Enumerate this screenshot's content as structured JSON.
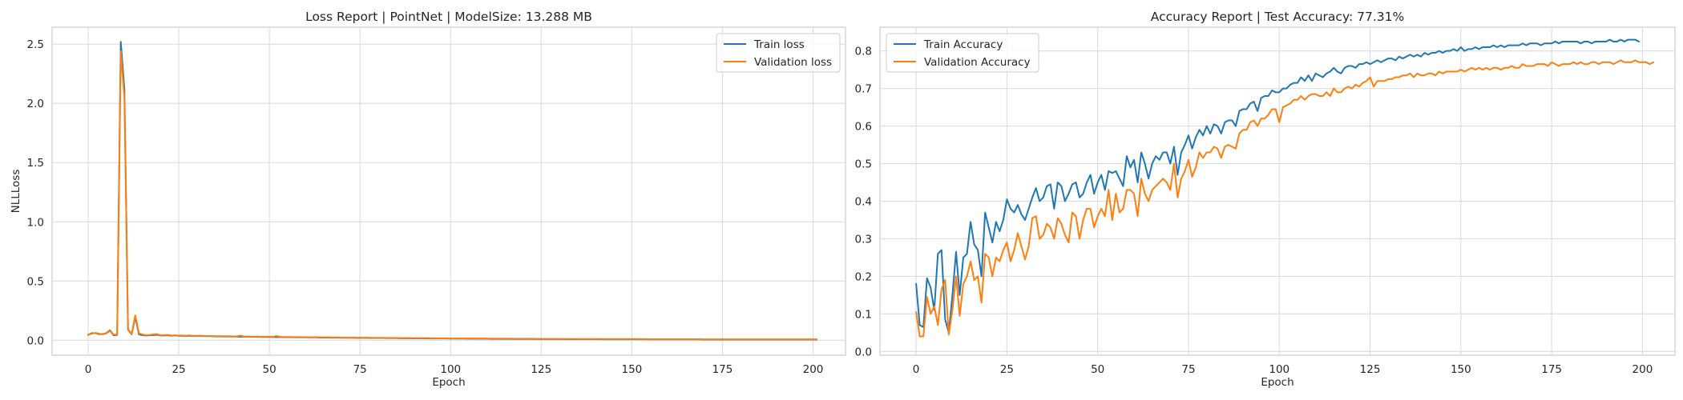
{
  "chart_data": [
    {
      "type": "line",
      "title": "Loss Report | PointNet | ModelSize: 13.288 MB",
      "xlabel": "Epoch",
      "ylabel": "NLLLoss",
      "xlim": [
        -9.95,
        208.95
      ],
      "ylim": [
        -0.126,
        2.643
      ],
      "xticks": [
        0,
        25,
        50,
        75,
        100,
        125,
        150,
        175,
        200
      ],
      "yticks": [
        0.0,
        0.5,
        1.0,
        1.5,
        2.0,
        2.5
      ],
      "ytick_labels": [
        "0.0",
        "0.5",
        "1.0",
        "1.5",
        "2.0",
        "2.5"
      ],
      "grid": true,
      "legend_position": "upper right",
      "series": [
        {
          "name": "Train loss",
          "color": "#1f77b4",
          "x_start": 0,
          "values": [
            0.045,
            0.06,
            0.06,
            0.052,
            0.052,
            0.06,
            0.085,
            0.042,
            0.045,
            2.52,
            2.12,
            0.09,
            0.05,
            0.195,
            0.05,
            0.042,
            0.04,
            0.042,
            0.044,
            0.046,
            0.04,
            0.04,
            0.042,
            0.038,
            0.04,
            0.038,
            0.038,
            0.036,
            0.038,
            0.036,
            0.036,
            0.036,
            0.034,
            0.034,
            0.034,
            0.033,
            0.033,
            0.032,
            0.032,
            0.032,
            0.031,
            0.031,
            0.03,
            0.03,
            0.03,
            0.029,
            0.029,
            0.029,
            0.028,
            0.028,
            0.028,
            0.027,
            0.027,
            0.027,
            0.026,
            0.026,
            0.026,
            0.025,
            0.025,
            0.025,
            0.024,
            0.024,
            0.024,
            0.024,
            0.023,
            0.023,
            0.023,
            0.022,
            0.022,
            0.022,
            0.021,
            0.021,
            0.021,
            0.021,
            0.02,
            0.02,
            0.02,
            0.02,
            0.019,
            0.019,
            0.019,
            0.019,
            0.018,
            0.018,
            0.018,
            0.018,
            0.017,
            0.017,
            0.017,
            0.017,
            0.016,
            0.016,
            0.016,
            0.016,
            0.016,
            0.015,
            0.015,
            0.015,
            0.015,
            0.015,
            0.014,
            0.014,
            0.014,
            0.014,
            0.014,
            0.013,
            0.013,
            0.013,
            0.013,
            0.013,
            0.013,
            0.012,
            0.012,
            0.012,
            0.012,
            0.012,
            0.012,
            0.011,
            0.011,
            0.011,
            0.011,
            0.011,
            0.011,
            0.011,
            0.01,
            0.01,
            0.01,
            0.01,
            0.01,
            0.01,
            0.01,
            0.01,
            0.009,
            0.009,
            0.009,
            0.009,
            0.009,
            0.009,
            0.009,
            0.009,
            0.009,
            0.009,
            0.008,
            0.008,
            0.008,
            0.008,
            0.008,
            0.008,
            0.008,
            0.008,
            0.008,
            0.008,
            0.008,
            0.008,
            0.007,
            0.007,
            0.007,
            0.007,
            0.007,
            0.007,
            0.007,
            0.007,
            0.007,
            0.007,
            0.007,
            0.007,
            0.007,
            0.007,
            0.007,
            0.007,
            0.006,
            0.006,
            0.006,
            0.006,
            0.006,
            0.006,
            0.006,
            0.006,
            0.006,
            0.006,
            0.006,
            0.006,
            0.006,
            0.006,
            0.006,
            0.006,
            0.006,
            0.006,
            0.006,
            0.006,
            0.006,
            0.006,
            0.006,
            0.006,
            0.006,
            0.006,
            0.006,
            0.006,
            0.006,
            0.006,
            0.006,
            0.006
          ]
        },
        {
          "name": "Validation loss",
          "color": "#ff7f0e",
          "x_start": 0,
          "values": [
            0.048,
            0.055,
            0.062,
            0.056,
            0.05,
            0.058,
            0.08,
            0.048,
            0.05,
            2.44,
            2.05,
            0.095,
            0.052,
            0.21,
            0.06,
            0.048,
            0.044,
            0.045,
            0.05,
            0.052,
            0.042,
            0.043,
            0.046,
            0.04,
            0.042,
            0.04,
            0.04,
            0.038,
            0.041,
            0.038,
            0.038,
            0.039,
            0.036,
            0.036,
            0.036,
            0.035,
            0.035,
            0.034,
            0.034,
            0.034,
            0.033,
            0.033,
            0.04,
            0.032,
            0.032,
            0.031,
            0.031,
            0.031,
            0.03,
            0.03,
            0.03,
            0.029,
            0.036,
            0.029,
            0.028,
            0.028,
            0.028,
            0.027,
            0.027,
            0.027,
            0.026,
            0.026,
            0.026,
            0.026,
            0.025,
            0.025,
            0.025,
            0.024,
            0.024,
            0.024,
            0.023,
            0.023,
            0.023,
            0.023,
            0.022,
            0.022,
            0.022,
            0.022,
            0.021,
            0.021,
            0.021,
            0.021,
            0.02,
            0.02,
            0.02,
            0.02,
            0.019,
            0.019,
            0.019,
            0.019,
            0.018,
            0.018,
            0.018,
            0.018,
            0.018,
            0.017,
            0.017,
            0.017,
            0.017,
            0.017,
            0.016,
            0.016,
            0.016,
            0.016,
            0.016,
            0.015,
            0.015,
            0.015,
            0.015,
            0.015,
            0.015,
            0.014,
            0.014,
            0.014,
            0.014,
            0.014,
            0.014,
            0.013,
            0.013,
            0.013,
            0.013,
            0.013,
            0.013,
            0.013,
            0.012,
            0.012,
            0.012,
            0.012,
            0.012,
            0.012,
            0.012,
            0.012,
            0.011,
            0.011,
            0.011,
            0.011,
            0.011,
            0.011,
            0.011,
            0.011,
            0.011,
            0.011,
            0.01,
            0.01,
            0.01,
            0.01,
            0.01,
            0.01,
            0.01,
            0.01,
            0.01,
            0.01,
            0.01,
            0.01,
            0.009,
            0.009,
            0.009,
            0.009,
            0.009,
            0.009,
            0.009,
            0.009,
            0.009,
            0.009,
            0.009,
            0.009,
            0.009,
            0.009,
            0.009,
            0.009,
            0.008,
            0.008,
            0.008,
            0.008,
            0.008,
            0.008,
            0.008,
            0.008,
            0.008,
            0.008,
            0.008,
            0.008,
            0.008,
            0.008,
            0.008,
            0.008,
            0.008,
            0.008,
            0.008,
            0.008,
            0.008,
            0.008,
            0.008,
            0.008,
            0.008,
            0.008,
            0.008,
            0.008,
            0.008,
            0.008,
            0.008,
            0.008
          ]
        }
      ]
    },
    {
      "type": "line",
      "title": "Accuracy Report | Test Accuracy: 77.31%",
      "xlabel": "Epoch",
      "ylabel": "",
      "xlim": [
        -9.95,
        208.95
      ],
      "ylim": [
        -0.01,
        0.8632
      ],
      "xticks": [
        0,
        25,
        50,
        75,
        100,
        125,
        150,
        175,
        200
      ],
      "yticks": [
        0.0,
        0.1,
        0.2,
        0.3,
        0.4,
        0.5,
        0.6,
        0.7,
        0.8
      ],
      "ytick_labels": [
        "0.0",
        "0.1",
        "0.2",
        "0.3",
        "0.4",
        "0.5",
        "0.6",
        "0.7",
        "0.8"
      ],
      "grid": true,
      "legend_position": "upper left",
      "series": [
        {
          "name": "Train Accuracy",
          "color": "#1f77b4",
          "x_start": 0,
          "values": [
            0.18,
            0.07,
            0.065,
            0.195,
            0.17,
            0.11,
            0.26,
            0.27,
            0.085,
            0.05,
            0.15,
            0.265,
            0.15,
            0.25,
            0.26,
            0.345,
            0.285,
            0.27,
            0.2,
            0.37,
            0.33,
            0.29,
            0.345,
            0.32,
            0.35,
            0.405,
            0.38,
            0.37,
            0.39,
            0.365,
            0.35,
            0.38,
            0.41,
            0.435,
            0.4,
            0.41,
            0.44,
            0.445,
            0.38,
            0.45,
            0.44,
            0.4,
            0.42,
            0.445,
            0.45,
            0.41,
            0.42,
            0.45,
            0.47,
            0.42,
            0.45,
            0.47,
            0.43,
            0.48,
            0.475,
            0.48,
            0.46,
            0.44,
            0.52,
            0.49,
            0.51,
            0.45,
            0.53,
            0.5,
            0.46,
            0.5,
            0.52,
            0.51,
            0.53,
            0.53,
            0.5,
            0.545,
            0.47,
            0.53,
            0.55,
            0.575,
            0.54,
            0.57,
            0.59,
            0.575,
            0.6,
            0.58,
            0.605,
            0.6,
            0.58,
            0.61,
            0.615,
            0.615,
            0.6,
            0.64,
            0.645,
            0.645,
            0.66,
            0.665,
            0.64,
            0.675,
            0.68,
            0.68,
            0.695,
            0.69,
            0.69,
            0.7,
            0.7,
            0.71,
            0.715,
            0.715,
            0.73,
            0.72,
            0.735,
            0.72,
            0.74,
            0.735,
            0.73,
            0.74,
            0.745,
            0.755,
            0.745,
            0.74,
            0.755,
            0.76,
            0.76,
            0.755,
            0.765,
            0.765,
            0.77,
            0.765,
            0.77,
            0.775,
            0.77,
            0.775,
            0.78,
            0.78,
            0.775,
            0.785,
            0.78,
            0.785,
            0.79,
            0.785,
            0.79,
            0.785,
            0.795,
            0.79,
            0.795,
            0.795,
            0.8,
            0.795,
            0.8,
            0.8,
            0.805,
            0.8,
            0.81,
            0.8,
            0.805,
            0.805,
            0.81,
            0.805,
            0.81,
            0.81,
            0.81,
            0.815,
            0.81,
            0.815,
            0.81,
            0.815,
            0.815,
            0.815,
            0.815,
            0.82,
            0.815,
            0.82,
            0.82,
            0.82,
            0.815,
            0.82,
            0.82,
            0.82,
            0.825,
            0.82,
            0.825,
            0.825,
            0.825,
            0.825,
            0.825,
            0.82,
            0.825,
            0.825,
            0.82,
            0.825,
            0.825,
            0.825,
            0.825,
            0.83,
            0.825,
            0.825,
            0.83,
            0.825,
            0.83,
            0.83,
            0.83,
            0.825
          ]
        },
        {
          "name": "Validation Accuracy",
          "color": "#ff7f0e",
          "x_start": 0,
          "values": [
            0.105,
            0.04,
            0.04,
            0.145,
            0.1,
            0.12,
            0.07,
            0.165,
            0.19,
            0.045,
            0.11,
            0.2,
            0.095,
            0.18,
            0.2,
            0.24,
            0.19,
            0.2,
            0.13,
            0.26,
            0.25,
            0.2,
            0.25,
            0.24,
            0.27,
            0.29,
            0.24,
            0.27,
            0.315,
            0.28,
            0.245,
            0.28,
            0.355,
            0.36,
            0.3,
            0.31,
            0.34,
            0.33,
            0.3,
            0.355,
            0.34,
            0.31,
            0.29,
            0.37,
            0.36,
            0.3,
            0.35,
            0.38,
            0.38,
            0.33,
            0.36,
            0.38,
            0.36,
            0.43,
            0.35,
            0.42,
            0.37,
            0.38,
            0.43,
            0.43,
            0.42,
            0.36,
            0.46,
            0.42,
            0.4,
            0.43,
            0.44,
            0.45,
            0.46,
            0.45,
            0.43,
            0.5,
            0.41,
            0.46,
            0.48,
            0.51,
            0.465,
            0.49,
            0.53,
            0.515,
            0.53,
            0.53,
            0.545,
            0.54,
            0.515,
            0.545,
            0.55,
            0.545,
            0.54,
            0.58,
            0.59,
            0.59,
            0.61,
            0.615,
            0.6,
            0.62,
            0.62,
            0.63,
            0.645,
            0.645,
            0.61,
            0.65,
            0.655,
            0.66,
            0.67,
            0.67,
            0.68,
            0.67,
            0.68,
            0.685,
            0.685,
            0.68,
            0.68,
            0.69,
            0.68,
            0.7,
            0.69,
            0.69,
            0.7,
            0.705,
            0.7,
            0.71,
            0.705,
            0.715,
            0.72,
            0.73,
            0.705,
            0.72,
            0.72,
            0.72,
            0.725,
            0.725,
            0.73,
            0.73,
            0.735,
            0.735,
            0.74,
            0.73,
            0.74,
            0.735,
            0.735,
            0.74,
            0.74,
            0.735,
            0.745,
            0.74,
            0.745,
            0.745,
            0.745,
            0.745,
            0.75,
            0.745,
            0.75,
            0.755,
            0.75,
            0.755,
            0.75,
            0.755,
            0.75,
            0.755,
            0.755,
            0.75,
            0.755,
            0.755,
            0.76,
            0.755,
            0.755,
            0.765,
            0.76,
            0.76,
            0.76,
            0.765,
            0.765,
            0.765,
            0.76,
            0.77,
            0.765,
            0.76,
            0.765,
            0.765,
            0.765,
            0.77,
            0.765,
            0.77,
            0.765,
            0.765,
            0.77,
            0.77,
            0.765,
            0.77,
            0.77,
            0.77,
            0.765,
            0.77,
            0.775,
            0.77,
            0.77,
            0.77,
            0.775,
            0.77,
            0.77,
            0.77,
            0.765,
            0.77
          ]
        }
      ]
    }
  ]
}
